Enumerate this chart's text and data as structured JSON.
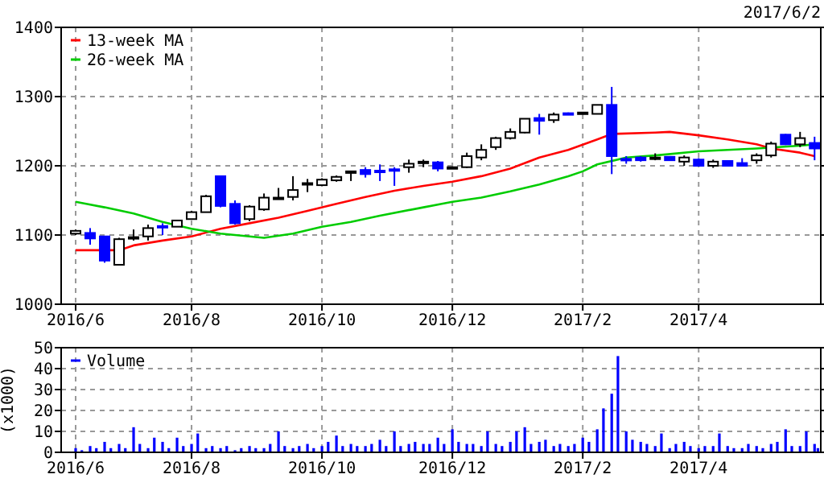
{
  "chart_data": [
    {
      "type": "candlestick",
      "subtitle": "2017/6/2",
      "x": [
        "2016-06-06",
        "2016-06-13",
        "2016-06-20",
        "2016-06-27",
        "2016-07-04",
        "2016-07-11",
        "2016-07-18",
        "2016-07-25",
        "2016-08-01",
        "2016-08-08",
        "2016-08-15",
        "2016-08-22",
        "2016-08-29",
        "2016-09-05",
        "2016-09-12",
        "2016-09-19",
        "2016-09-26",
        "2016-10-03",
        "2016-10-10",
        "2016-10-17",
        "2016-10-24",
        "2016-10-31",
        "2016-11-07",
        "2016-11-14",
        "2016-11-21",
        "2016-11-28",
        "2016-12-05",
        "2016-12-12",
        "2016-12-19",
        "2016-12-26",
        "2017-01-02",
        "2017-01-09",
        "2017-01-16",
        "2017-01-23",
        "2017-01-30",
        "2017-02-06",
        "2017-02-13",
        "2017-02-20",
        "2017-02-27",
        "2017-03-06",
        "2017-03-13",
        "2017-03-20",
        "2017-03-27",
        "2017-04-03",
        "2017-04-10",
        "2017-04-17",
        "2017-04-24",
        "2017-05-01",
        "2017-05-08",
        "2017-05-15",
        "2017-05-22",
        "2017-05-29"
      ],
      "ohlc": [
        [
          1102,
          1108,
          1100,
          1106
        ],
        [
          1103,
          1110,
          1086,
          1095
        ],
        [
          1098,
          1098,
          1060,
          1063
        ],
        [
          1057,
          1096,
          1057,
          1094
        ],
        [
          1096,
          1108,
          1092,
          1097
        ],
        [
          1098,
          1115,
          1092,
          1110
        ],
        [
          1113,
          1117,
          1100,
          1111
        ],
        [
          1112,
          1122,
          1112,
          1121
        ],
        [
          1123,
          1135,
          1122,
          1133
        ],
        [
          1133,
          1158,
          1133,
          1156
        ],
        [
          1185,
          1185,
          1140,
          1142
        ],
        [
          1145,
          1150,
          1115,
          1117
        ],
        [
          1123,
          1143,
          1120,
          1141
        ],
        [
          1137,
          1160,
          1135,
          1154
        ],
        [
          1153,
          1168,
          1152,
          1154
        ],
        [
          1155,
          1185,
          1150,
          1165
        ],
        [
          1174,
          1181,
          1162,
          1175
        ],
        [
          1172,
          1182,
          1171,
          1180
        ],
        [
          1179,
          1186,
          1177,
          1184
        ],
        [
          1192,
          1193,
          1178,
          1192
        ],
        [
          1194,
          1198,
          1183,
          1188
        ],
        [
          1193,
          1202,
          1178,
          1192
        ],
        [
          1195,
          1198,
          1171,
          1194
        ],
        [
          1198,
          1209,
          1190,
          1203
        ],
        [
          1205,
          1209,
          1198,
          1206
        ],
        [
          1205,
          1207,
          1192,
          1196
        ],
        [
          1198,
          1199,
          1196,
          1198
        ],
        [
          1198,
          1219,
          1197,
          1214
        ],
        [
          1212,
          1231,
          1208,
          1223
        ],
        [
          1227,
          1242,
          1223,
          1240
        ],
        [
          1240,
          1254,
          1238,
          1249
        ],
        [
          1248,
          1268,
          1247,
          1268
        ],
        [
          1269,
          1275,
          1245,
          1265
        ],
        [
          1266,
          1277,
          1262,
          1274
        ],
        [
          1276,
          1277,
          1274,
          1275
        ],
        [
          1277,
          1277,
          1277,
          1277
        ],
        [
          1275,
          1288,
          1275,
          1288
        ],
        [
          1288,
          1314,
          1188,
          1214
        ],
        [
          1210,
          1214,
          1203,
          1209
        ],
        [
          1212,
          1214,
          1206,
          1208
        ],
        [
          1212,
          1218,
          1208,
          1212
        ],
        [
          1213,
          1214,
          1207,
          1208
        ],
        [
          1206,
          1215,
          1200,
          1212
        ],
        [
          1209,
          1211,
          1200,
          1200
        ],
        [
          1200,
          1209,
          1197,
          1206
        ],
        [
          1207,
          1208,
          1200,
          1200
        ],
        [
          1204,
          1211,
          1200,
          1200
        ],
        [
          1208,
          1218,
          1203,
          1215
        ],
        [
          1215,
          1235,
          1212,
          1232
        ],
        [
          1245,
          1246,
          1230,
          1231
        ],
        [
          1231,
          1249,
          1227,
          1240
        ],
        [
          1233,
          1242,
          1208,
          1225
        ]
      ],
      "series": [
        {
          "type": "line",
          "name": "13-week MA",
          "color": "#ff0000",
          "x": [
            "2016-06-06",
            "2016-06-27",
            "2016-07-04",
            "2016-07-18",
            "2016-08-01",
            "2016-08-15",
            "2016-08-29",
            "2016-09-12",
            "2016-09-26",
            "2016-10-10",
            "2016-10-24",
            "2016-11-07",
            "2016-11-21",
            "2016-12-05",
            "2016-12-19",
            "2017-01-02",
            "2017-01-16",
            "2017-01-30",
            "2017-02-13",
            "2017-02-20",
            "2017-03-13",
            "2017-03-20",
            "2017-04-03",
            "2017-04-17",
            "2017-05-01",
            "2017-05-08",
            "2017-05-22",
            "2017-05-29"
          ],
          "values": [
            1078,
            1078,
            1085,
            1092,
            1098,
            1109,
            1117,
            1125,
            1135,
            1145,
            1155,
            1164,
            1171,
            1177,
            1185,
            1196,
            1212,
            1223,
            1238,
            1246,
            1248,
            1249,
            1244,
            1238,
            1231,
            1225,
            1219,
            1214
          ]
        },
        {
          "type": "line",
          "name": "26-week MA",
          "color": "#00cc00",
          "x": [
            "2016-06-06",
            "2016-06-20",
            "2016-07-04",
            "2016-07-18",
            "2016-08-01",
            "2016-08-15",
            "2016-08-29",
            "2016-09-05",
            "2016-09-19",
            "2016-10-03",
            "2016-10-17",
            "2016-10-31",
            "2016-11-21",
            "2016-12-05",
            "2016-12-19",
            "2017-01-02",
            "2017-01-16",
            "2017-01-30",
            "2017-02-06",
            "2017-02-13",
            "2017-02-27",
            "2017-03-13",
            "2017-04-03",
            "2017-04-17",
            "2017-05-01",
            "2017-05-22",
            "2017-05-29"
          ],
          "values": [
            1148,
            1140,
            1131,
            1119,
            1109,
            1102,
            1098,
            1096,
            1102,
            1112,
            1119,
            1128,
            1140,
            1148,
            1154,
            1163,
            1173,
            1185,
            1192,
            1202,
            1212,
            1215,
            1221,
            1223,
            1225,
            1229,
            1231
          ]
        }
      ],
      "xlim": [
        "2016-05-30",
        "2017-06-01"
      ],
      "xticks": [
        {
          "value": "2016-06-06",
          "label": "2016/6"
        },
        {
          "value": "2016-08-01",
          "label": "2016/8"
        },
        {
          "value": "2016-10-03",
          "label": "2016/10"
        },
        {
          "value": "2016-12-05",
          "label": "2016/12"
        },
        {
          "value": "2017-02-06",
          "label": "2017/2"
        },
        {
          "value": "2017-04-03",
          "label": "2017/4"
        }
      ],
      "ylim": [
        1000,
        1400
      ],
      "yticks": [
        1000,
        1100,
        1200,
        1300,
        1400
      ],
      "grid": true,
      "legend": "top left"
    },
    {
      "type": "bar",
      "ylabel": "(x1000)",
      "x": [
        "2016-06-06",
        "2016-06-09",
        "2016-06-13",
        "2016-06-16",
        "2016-06-20",
        "2016-06-23",
        "2016-06-27",
        "2016-06-30",
        "2016-07-04",
        "2016-07-07",
        "2016-07-11",
        "2016-07-14",
        "2016-07-18",
        "2016-07-21",
        "2016-07-25",
        "2016-07-28",
        "2016-08-01",
        "2016-08-04",
        "2016-08-08",
        "2016-08-11",
        "2016-08-15",
        "2016-08-18",
        "2016-08-22",
        "2016-08-25",
        "2016-08-29",
        "2016-09-01",
        "2016-09-05",
        "2016-09-08",
        "2016-09-12",
        "2016-09-15",
        "2016-09-19",
        "2016-09-22",
        "2016-09-26",
        "2016-09-29",
        "2016-10-03",
        "2016-10-06",
        "2016-10-10",
        "2016-10-13",
        "2016-10-17",
        "2016-10-20",
        "2016-10-24",
        "2016-10-27",
        "2016-10-31",
        "2016-11-03",
        "2016-11-07",
        "2016-11-10",
        "2016-11-14",
        "2016-11-17",
        "2016-11-21",
        "2016-11-24",
        "2016-11-28",
        "2016-12-01",
        "2016-12-05",
        "2016-12-08",
        "2016-12-12",
        "2016-12-15",
        "2016-12-19",
        "2016-12-22",
        "2016-12-26",
        "2016-12-29",
        "2017-01-02",
        "2017-01-05",
        "2017-01-09",
        "2017-01-12",
        "2017-01-16",
        "2017-01-19",
        "2017-01-23",
        "2017-01-26",
        "2017-01-30",
        "2017-02-02",
        "2017-02-06",
        "2017-02-09",
        "2017-02-13",
        "2017-02-16",
        "2017-02-20",
        "2017-02-23",
        "2017-02-27",
        "2017-03-02",
        "2017-03-06",
        "2017-03-09",
        "2017-03-13",
        "2017-03-16",
        "2017-03-20",
        "2017-03-23",
        "2017-03-27",
        "2017-03-30",
        "2017-04-03",
        "2017-04-06",
        "2017-04-10",
        "2017-04-13",
        "2017-04-17",
        "2017-04-20",
        "2017-04-24",
        "2017-04-27",
        "2017-05-01",
        "2017-05-04",
        "2017-05-08",
        "2017-05-11",
        "2017-05-15",
        "2017-05-18",
        "2017-05-22",
        "2017-05-25",
        "2017-05-29",
        "2017-06-01"
      ],
      "series": [
        {
          "name": "Volume",
          "color": "#0000ff",
          "values": [
            2,
            1,
            3,
            2,
            5,
            2,
            4,
            2,
            12,
            4,
            2,
            7,
            5,
            2,
            7,
            3,
            4,
            9,
            2,
            3,
            2,
            3,
            1,
            2,
            3,
            2,
            2,
            4,
            10,
            3,
            2,
            3,
            4,
            2,
            3,
            5,
            8,
            3,
            4,
            3,
            3,
            4,
            6,
            3,
            10,
            3,
            4,
            5,
            4,
            4,
            7,
            4,
            11,
            5,
            4,
            4,
            3,
            10,
            4,
            3,
            5,
            10,
            12,
            4,
            5,
            6,
            3,
            4,
            3,
            4,
            7,
            5,
            11,
            21,
            28,
            46,
            10,
            6,
            5,
            4,
            3,
            9,
            2,
            4,
            5,
            3,
            2,
            3,
            3,
            9,
            3,
            2,
            2,
            4,
            3,
            2,
            4,
            5,
            11,
            3,
            3,
            10,
            4,
            2
          ]
        }
      ],
      "xlim": [
        "2016-05-30",
        "2017-06-01"
      ],
      "xticks": [
        {
          "value": "2016-06-06",
          "label": "2016/6"
        },
        {
          "value": "2016-08-01",
          "label": "2016/8"
        },
        {
          "value": "2016-10-03",
          "label": "2016/10"
        },
        {
          "value": "2016-12-05",
          "label": "2016/12"
        },
        {
          "value": "2017-02-06",
          "label": "2017/2"
        },
        {
          "value": "2017-04-03",
          "label": "2017/4"
        }
      ],
      "ylim": [
        0,
        50
      ],
      "yticks": [
        0,
        10,
        20,
        30,
        40,
        50
      ],
      "grid": true,
      "legend": "top left"
    }
  ]
}
